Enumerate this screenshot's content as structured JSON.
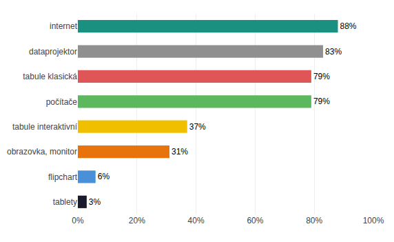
{
  "chart_data": {
    "type": "bar",
    "orientation": "horizontal",
    "categories": [
      "tablety",
      "flipchart",
      "obrazovka, monitor",
      "tabule interaktivní",
      "počítače",
      "tabule klasická",
      "dataprojektor",
      "internet"
    ],
    "values": [
      3,
      6,
      31,
      37,
      79,
      79,
      83,
      88
    ],
    "value_labels": [
      "3%",
      "6%",
      "31%",
      "37%",
      "79%",
      "79%",
      "83%",
      "88%"
    ],
    "data_labels": true,
    "colors": [
      "#1a1a2e",
      "#4a90d9",
      "#e8720c",
      "#f0c000",
      "#5cb85c",
      "#e05555",
      "#909090",
      "#1a9080"
    ],
    "xlim": [
      0,
      100
    ],
    "xticks": [
      {
        "value": 0,
        "label": "0%"
      },
      {
        "value": 20,
        "label": "20%"
      },
      {
        "value": 40,
        "label": "40%"
      },
      {
        "value": 60,
        "label": "60%"
      },
      {
        "value": 80,
        "label": "80%"
      },
      {
        "value": 100,
        "label": "100%"
      }
    ],
    "grid": true
  }
}
